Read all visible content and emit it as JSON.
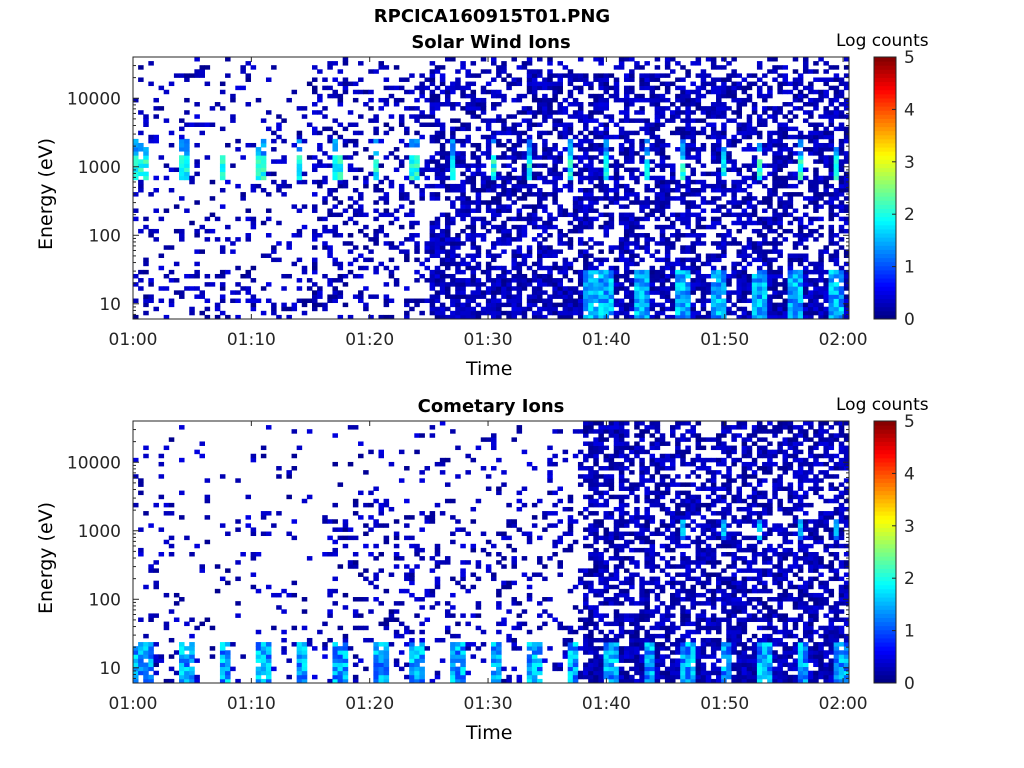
{
  "figure_title": "RPCICA160915T01.PNG",
  "chart_data": [
    {
      "type": "heatmap",
      "title": "Solar Wind Ions",
      "xlabel": "Time",
      "ylabel": "Energy (eV)",
      "x_ticks": [
        "01:00",
        "01:10",
        "01:20",
        "01:30",
        "01:40",
        "01:50",
        "02:00"
      ],
      "y_ticks": [
        "10",
        "100",
        "1000",
        "10000"
      ],
      "y_scale": "log",
      "ylim": [
        6,
        40000
      ],
      "colorbar": {
        "label": "Log counts",
        "ticks": [
          "0",
          "1",
          "2",
          "3",
          "4",
          "5"
        ],
        "range": [
          0,
          5
        ],
        "colormap": "jet"
      },
      "features": [
        "Sparse low-level counts (0-1) at high energies before 01:25",
        "Periodic ~1000 eV peaks (log counts ~1.5-2.3) roughly every 3.2 min",
        "Dense 0-1 log counts above 100 eV after 01:25",
        "Low-energy (~10-30 eV) band with log counts ~1-2 after 01:38"
      ]
    },
    {
      "type": "heatmap",
      "title": "Cometary Ions",
      "xlabel": "Time",
      "ylabel": "Energy (eV)",
      "x_ticks": [
        "01:00",
        "01:10",
        "01:20",
        "01:30",
        "01:40",
        "01:50",
        "02:00"
      ],
      "y_ticks": [
        "10",
        "100",
        "1000",
        "10000"
      ],
      "y_scale": "log",
      "ylim": [
        6,
        40000
      ],
      "colorbar": {
        "label": "Log counts",
        "ticks": [
          "0",
          "1",
          "2",
          "3",
          "4",
          "5"
        ],
        "range": [
          0,
          5
        ],
        "colormap": "jet"
      },
      "features": [
        "Periodic low-energy (~10-20 eV) bursts (log counts ~1-2) every ~3.2 min",
        "Sparse counts above 100 eV before 01:38",
        "Dense 0-1 log counts across all energies after 01:38",
        "Weak ~1000 eV peaks after 01:45"
      ]
    }
  ]
}
